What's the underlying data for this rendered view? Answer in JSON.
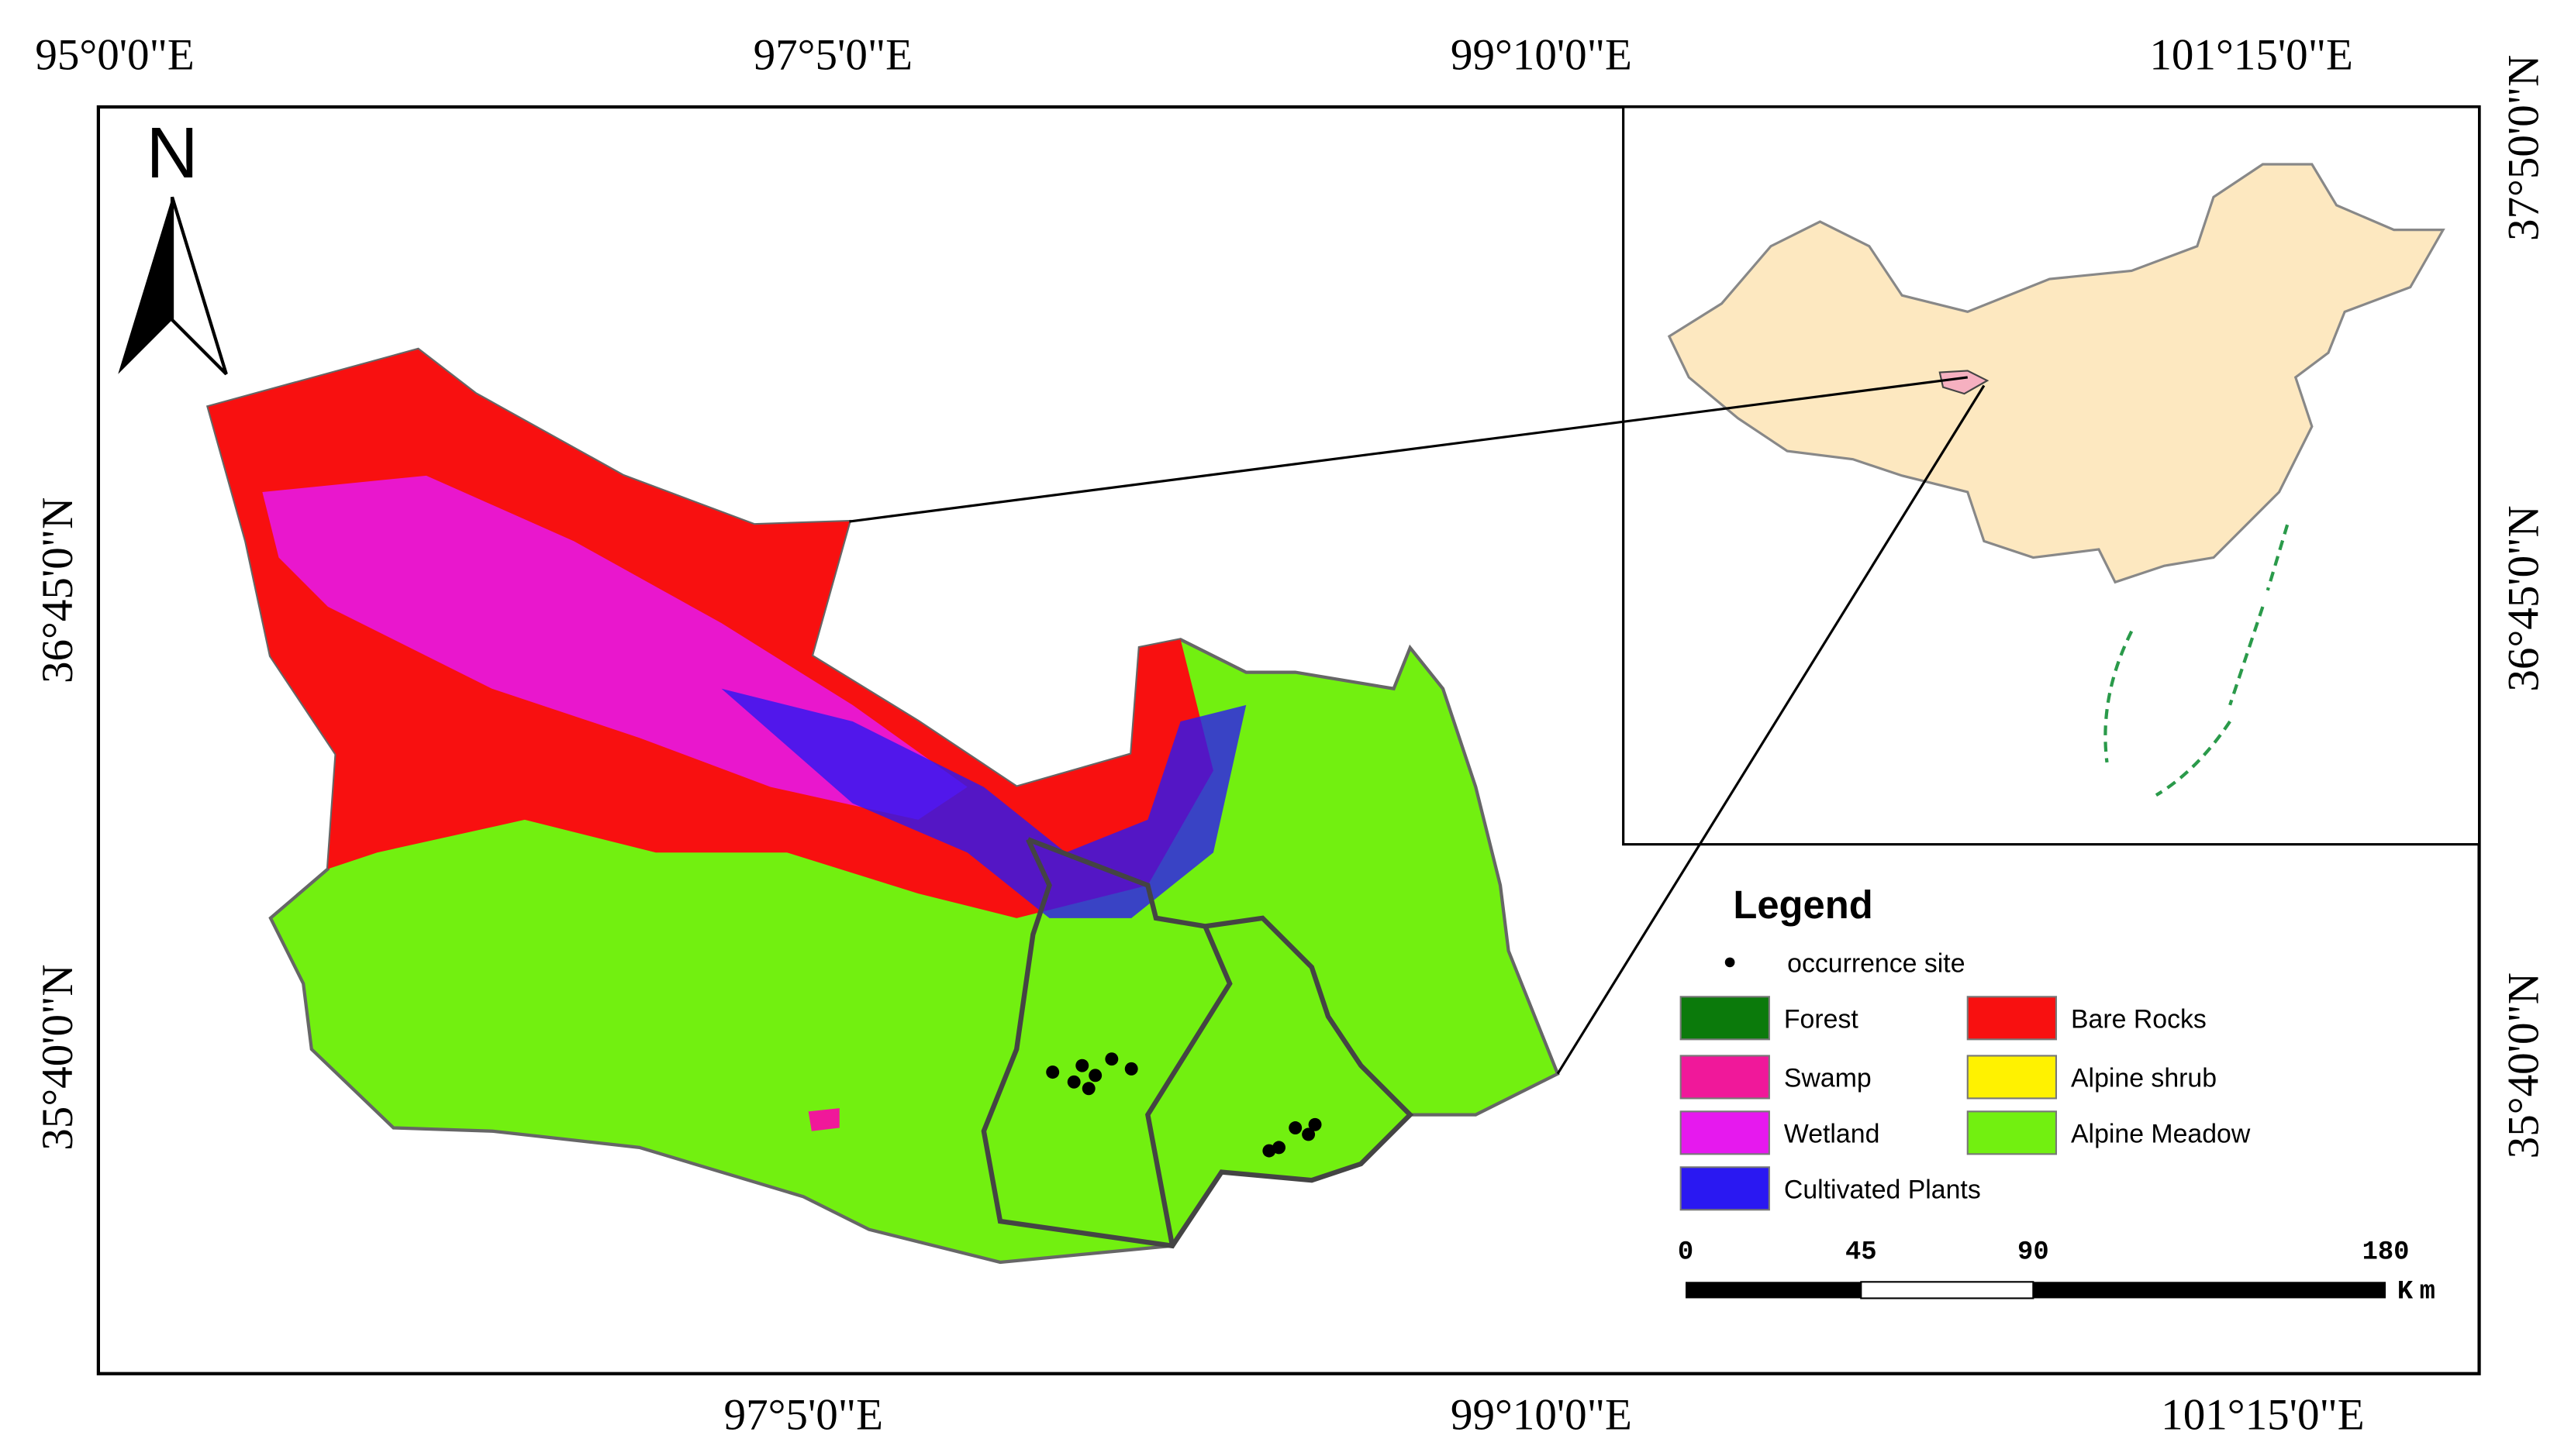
{
  "map": {
    "north_arrow": "N",
    "top_labels": [
      "95°0'0\"E",
      "97°5'0\"E",
      "99°10'0\"E",
      "101°15'0\"E"
    ],
    "bottom_labels": [
      "97°5'0\"E",
      "99°10'0\"E",
      "101°15'0\"E"
    ],
    "left_labels": [
      "36°45'0\"N",
      "35°40'0\"N"
    ],
    "right_labels": [
      "37°50'0\"N",
      "36°45'0\"N",
      "35°40'0\"N"
    ],
    "legend": {
      "title": "Legend",
      "items": [
        {
          "label": "occurrence site",
          "color": "#000000"
        },
        {
          "label": "Forest",
          "color": "#0b7a0b"
        },
        {
          "label": "Swamp",
          "color": "#f0189a"
        },
        {
          "label": "Wetland",
          "color": "#e619ee"
        },
        {
          "label": "Cultivated Plants",
          "color": "#2a18f2"
        },
        {
          "label": "Bare Rocks",
          "color": "#f81010"
        },
        {
          "label": "Alpine shrub",
          "color": "#fff200"
        },
        {
          "label": "Alpine Meadow",
          "color": "#72f010"
        }
      ]
    },
    "scale_bar": {
      "ticks": [
        "0",
        "45",
        "90",
        "180"
      ],
      "unit": "Km"
    }
  }
}
